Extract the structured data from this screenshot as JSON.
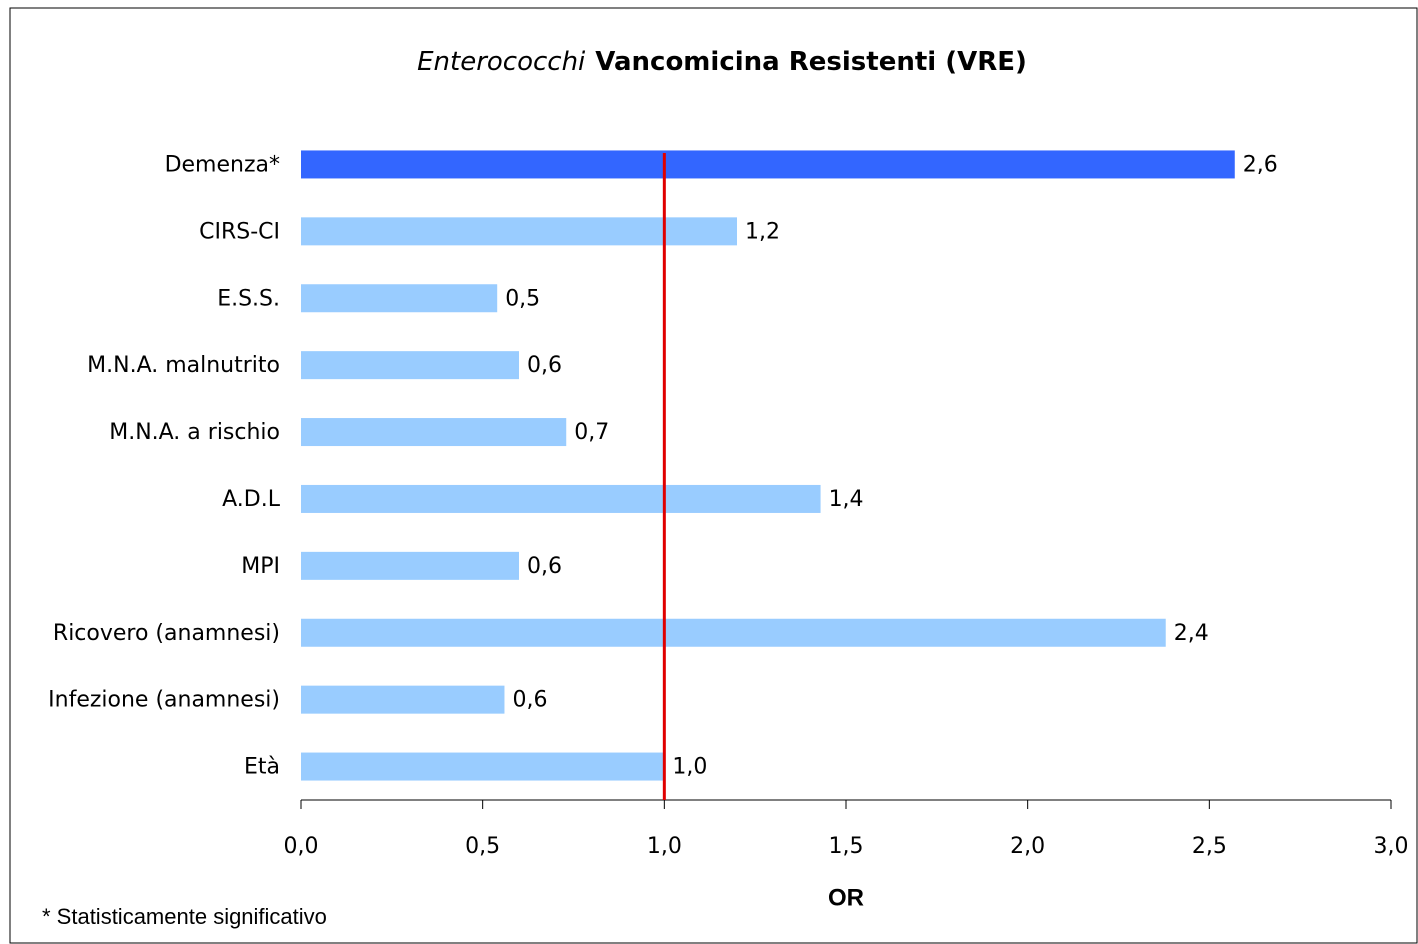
{
  "chart_data": {
    "type": "hbar",
    "title_parts": [
      "Enterococchi",
      "Vancomicina Resistenti (VRE)"
    ],
    "categories": [
      "Demenza*",
      "CIRS-CI",
      "E.S.S.",
      "M.N.A. malnutrito",
      "M.N.A. a rischio",
      "A.D.L",
      "MPI",
      "Ricovero (anamnesi)",
      "Infezione (anamnesi)",
      "Età"
    ],
    "values": [
      2.57,
      1.2,
      0.54,
      0.6,
      0.73,
      1.43,
      0.6,
      2.38,
      0.56,
      1.0
    ],
    "value_labels": [
      "2,6",
      "1,2",
      "0,5",
      "0,6",
      "0,7",
      "1,4",
      "0,6",
      "2,4",
      "0,6",
      "1,0"
    ],
    "colors": [
      "#3366ff",
      "#99ccff",
      "#99ccff",
      "#99ccff",
      "#99ccff",
      "#99ccff",
      "#99ccff",
      "#99ccff",
      "#99ccff",
      "#99ccff"
    ],
    "xlim": [
      0,
      3
    ],
    "xticks": [
      {
        "value": 0,
        "label": "0,0"
      },
      {
        "value": 0.5,
        "label": "0,5"
      },
      {
        "value": 1,
        "label": "1,0"
      },
      {
        "value": 1.5,
        "label": "1,5"
      },
      {
        "value": 2,
        "label": "2,0"
      },
      {
        "value": 2.5,
        "label": "2,5"
      },
      {
        "value": 3,
        "label": "3,0"
      }
    ],
    "xlabel": "OR",
    "reference_line": {
      "value": 1,
      "color": "#e00000"
    },
    "footnote": "* Statisticamente significativo"
  }
}
